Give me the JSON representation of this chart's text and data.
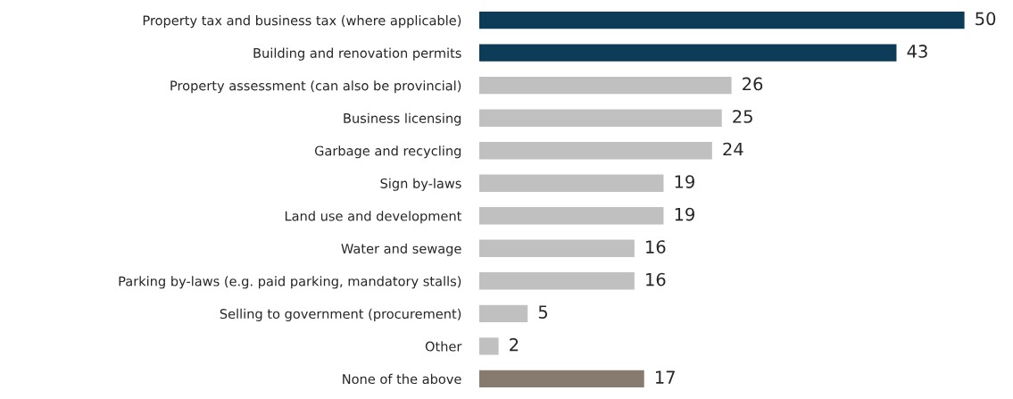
{
  "chart_data": {
    "type": "bar",
    "orientation": "horizontal",
    "categories": [
      "Property tax and business tax (where applicable)",
      "Building and renovation permits",
      "Property assessment (can also be provincial)",
      "Business licensing",
      "Garbage and recycling",
      "Sign by-laws",
      "Land use and development",
      "Water and sewage",
      "Parking by-laws (e.g. paid parking, mandatory stalls)",
      "Selling to government (procurement)",
      "Other",
      "None of the above"
    ],
    "values": [
      50,
      43,
      26,
      25,
      24,
      19,
      19,
      16,
      16,
      5,
      2,
      17
    ],
    "colors": [
      "#003f63",
      "#003f63",
      "#c0c0c0",
      "#c0c0c0",
      "#c0c0c0",
      "#c0c0c0",
      "#c0c0c0",
      "#c0c0c0",
      "#c0c0c0",
      "#c0c0c0",
      "#c0c0c0",
      "#8b7b6b"
    ],
    "data_labels": true,
    "tick_labels": "y"
  }
}
